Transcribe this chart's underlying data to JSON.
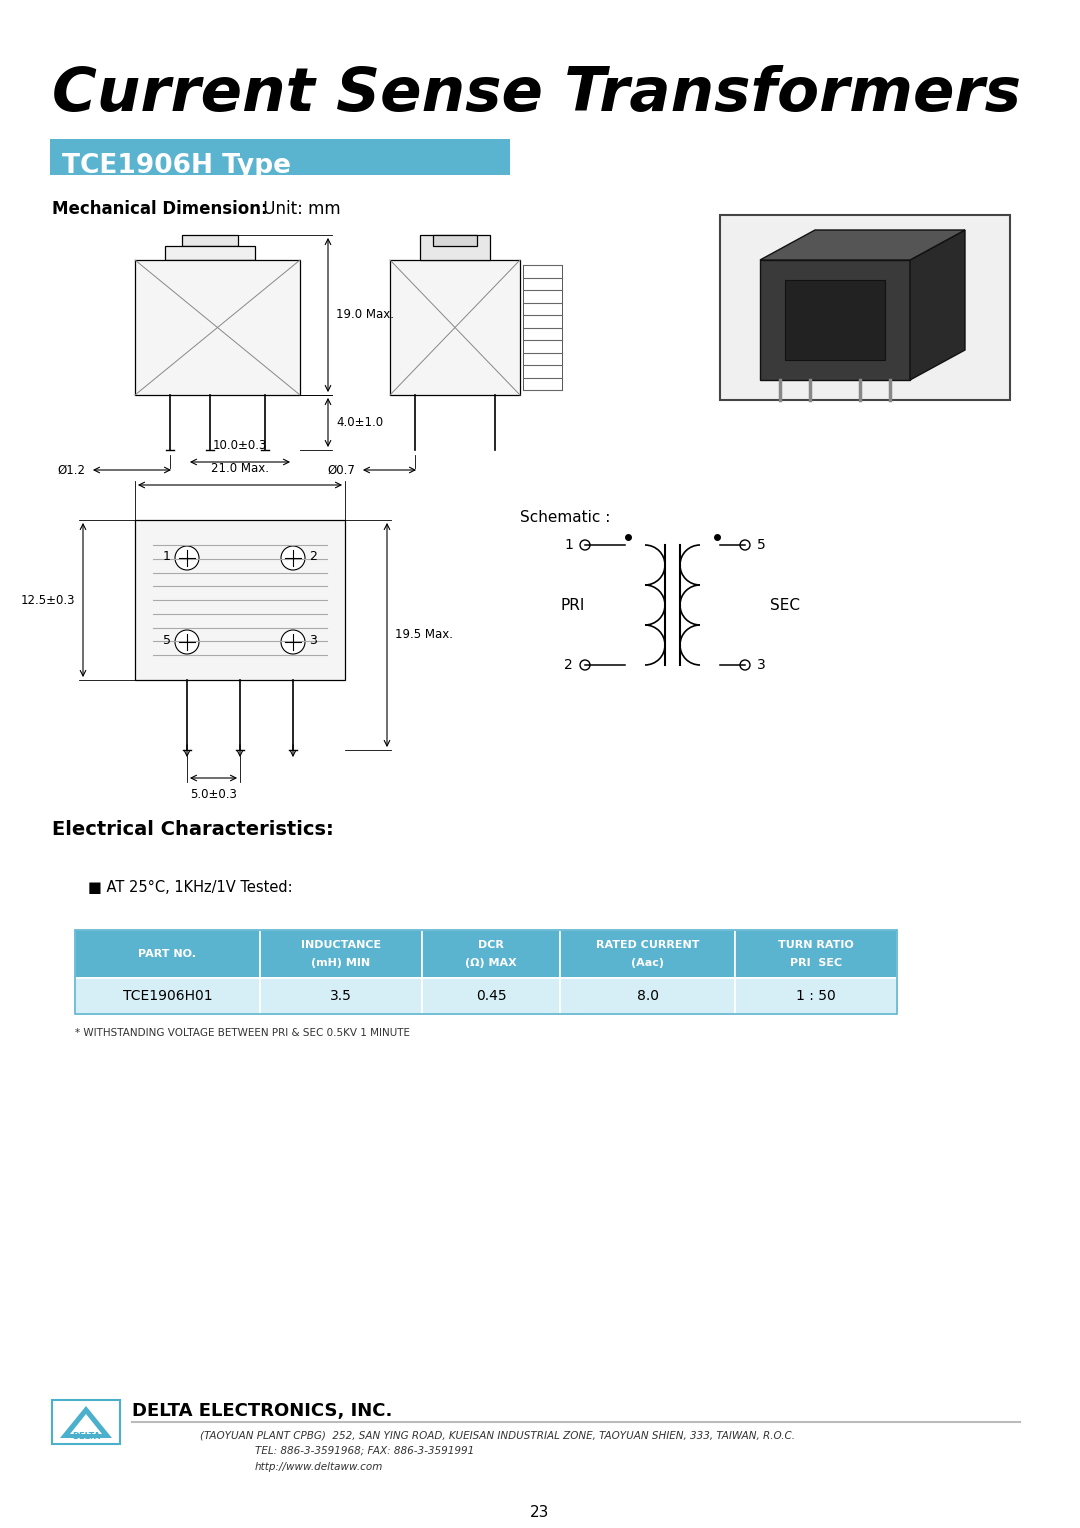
{
  "title": "Current Sense Transformers",
  "subtitle": "TCE1906H Type",
  "mech_dim_label": "Mechanical Dimension:",
  "mech_dim_unit": " Unit: mm",
  "page_number": "23",
  "bg_color": "#ffffff",
  "title_color": "#000000",
  "subtitle_bg": "#5ab4d0",
  "subtitle_text_color": "#ffffff",
  "table_header_bg": "#5ab4d0",
  "table_header_text": "#ffffff",
  "table_row_bg": "#d6eef5",
  "table_border": "#5ab4d0",
  "elec_char_title": "Electrical Characteristics:",
  "test_condition": "■ AT 25°C, 1KHz/1V Tested:",
  "footnote": "* WITHSTANDING VOLTAGE BETWEEN PRI & SEC 0.5KV 1 MINUTE",
  "table_headers": [
    "PART NO.",
    "INDUCTANCE\n(mH) MIN",
    "DCR\n(Ω) MAX",
    "RATED CURRENT\n(Aac)",
    "TURN RATIO\nPRI  SEC"
  ],
  "table_data": [
    [
      "TCE1906H01",
      "3.5",
      "0.45",
      "8.0",
      "1 : 50"
    ]
  ],
  "company_name": "DELTA ELECTRONICS, INC.",
  "company_addr1": "(TAOYUAN PLANT CPBG)  252, SAN YING ROAD, KUEISAN INDUSTRIAL ZONE, TAOYUAN SHIEN, 333, TAIWAN, R.O.C.",
  "company_addr2": "TEL: 886-3-3591968; FAX: 886-3-3591991",
  "company_addr3": "http://www.deltaww.com",
  "dim_19_max": "19.0 Max.",
  "dim_4": "4.0±1.0",
  "dim_phi12": "Ø1.2",
  "dim_phi07": "Ø0.7",
  "dim_21_max": "21.0 Max.",
  "dim_10": "10.0±0.3",
  "dim_125": "12.5±0.3",
  "dim_195_max": "19.5 Max.",
  "dim_50": "5.0±0.3",
  "schematic_label": "Schematic :",
  "pri_label": "PRI",
  "sec_label": "SEC"
}
